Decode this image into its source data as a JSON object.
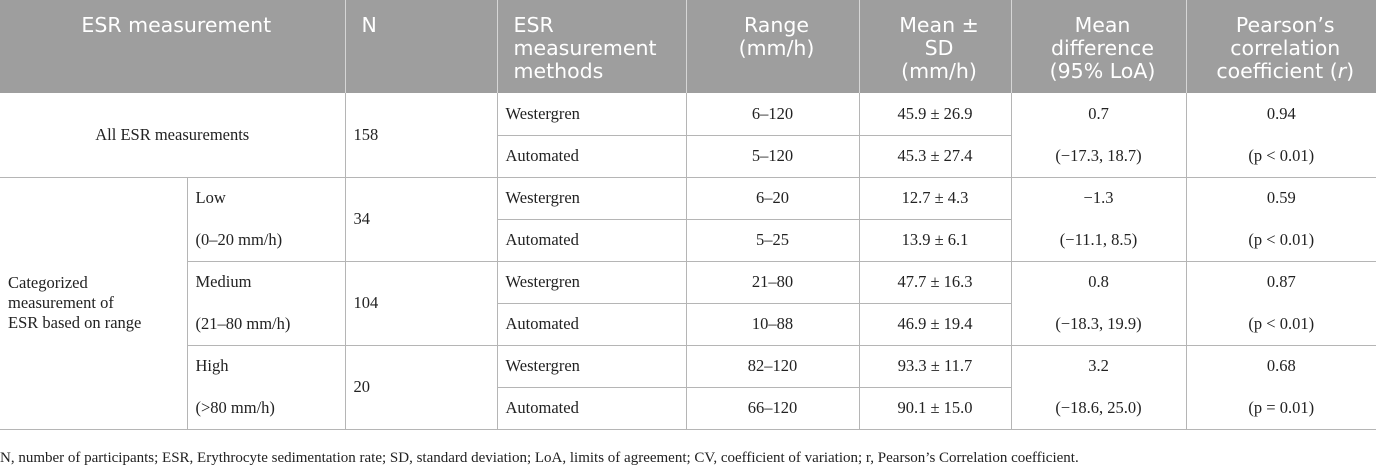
{
  "headers": {
    "esr_measurement": "ESR measurement",
    "n": "N",
    "methods": [
      "ESR",
      "measurement",
      "methods"
    ],
    "range": [
      "Range",
      "(mm/h)"
    ],
    "mean_sd": [
      "Mean ±",
      "SD",
      "(mm/h)"
    ],
    "mean_diff": [
      "Mean",
      "difference",
      "(95% LoA)"
    ],
    "pearson": [
      "Pearson’s",
      "correlation",
      "coefficient ("
    ],
    "pearson_r": "r",
    "pearson_close": ")"
  },
  "all": {
    "label": "All ESR measurements",
    "n": "158",
    "rows": [
      {
        "method": "Westergren",
        "range": "6–120",
        "mean_sd": "45.9 ± 26.9",
        "diff": "0.7",
        "r": "0.94"
      },
      {
        "method": "Automated",
        "range": "5–120",
        "mean_sd": "45.3 ± 27.4",
        "diff": "(−17.3, 18.7)",
        "r": "(p < 0.01)"
      }
    ]
  },
  "categorized": {
    "label": [
      "Categorized",
      "measurement of",
      "ESR based on range"
    ],
    "groups": [
      {
        "name": "Low",
        "range_label": "(0–20 mm/h)",
        "n": "34",
        "rows": [
          {
            "method": "Westergren",
            "range": "6–20",
            "mean_sd": "12.7 ± 4.3",
            "diff": "−1.3",
            "r": "0.59"
          },
          {
            "method": "Automated",
            "range": "5–25",
            "mean_sd": "13.9 ± 6.1",
            "diff": "(−11.1, 8.5)",
            "r": "(p < 0.01)"
          }
        ]
      },
      {
        "name": "Medium",
        "range_label": "(21–80 mm/h)",
        "n": "104",
        "rows": [
          {
            "method": "Westergren",
            "range": "21–80",
            "mean_sd": "47.7 ± 16.3",
            "diff": "0.8",
            "r": "0.87"
          },
          {
            "method": "Automated",
            "range": "10–88",
            "mean_sd": "46.9 ± 19.4",
            "diff": "(−18.3, 19.9)",
            "r": "(p < 0.01)"
          }
        ]
      },
      {
        "name": "High",
        "range_label": "(>80 mm/h)",
        "n": "20",
        "rows": [
          {
            "method": "Westergren",
            "range": "82–120",
            "mean_sd": "93.3 ± 11.7",
            "diff": "3.2",
            "r": "0.68"
          },
          {
            "method": "Automated",
            "range": "66–120",
            "mean_sd": "90.1 ± 15.0",
            "diff": "(−18.6, 25.0)",
            "r": "(p = 0.01)"
          }
        ]
      }
    ]
  },
  "footnote": "N, number of participants; ESR, Erythrocyte sedimentation rate; SD, standard deviation; LoA, limits of agreement; CV, coefficient of variation; r, Pearson’s Correlation coefficient.",
  "colors": {
    "header_bg": "#9e9e9e",
    "header_text": "#ffffff",
    "grid": "#b5b5b5"
  }
}
